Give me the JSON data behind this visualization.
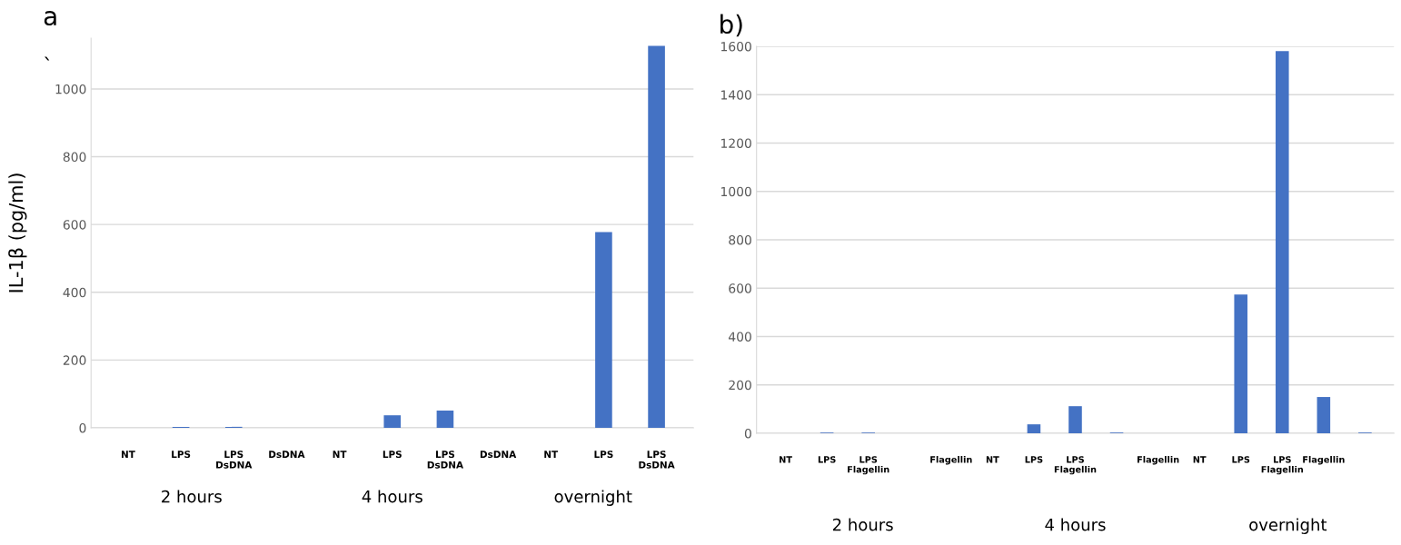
{
  "chart_data": [
    {
      "type": "bar",
      "title": "a",
      "subtitle": "`",
      "ylabel": "IL-1β (pg/ml)",
      "categories": [
        "NT",
        "LPS",
        "LPS DsDNA",
        "DsDNA",
        "NT",
        "LPS",
        "LPS DsDNA",
        "DsDNA",
        "NT",
        "LPS",
        "LPS DsDNA"
      ],
      "values": [
        0,
        3,
        3,
        0,
        0,
        37,
        51,
        0,
        0,
        578,
        1127
      ],
      "color": "#4472c4",
      "ylim": [
        0,
        1150
      ],
      "yticks": [
        0,
        200,
        400,
        600,
        800,
        1000
      ],
      "grid": "y",
      "annotations": [
        "2 hours",
        "4 hours",
        "overnight"
      ]
    },
    {
      "type": "bar",
      "title": "b)",
      "categories": [
        "NT",
        "LPS",
        "LPS Flagellin",
        null,
        "Flagellin",
        "NT",
        "LPS",
        "LPS Flagellin",
        null,
        "Flagellin",
        "NT",
        "LPS",
        "LPS Flagellin",
        "Flagellin",
        null
      ],
      "values": [
        0,
        3,
        3,
        0,
        0,
        0,
        37,
        112,
        3,
        0,
        0,
        574,
        1580,
        150,
        3
      ],
      "color": "#4472c4",
      "ylim": [
        0,
        1600
      ],
      "yticks": [
        0,
        200,
        400,
        600,
        800,
        1000,
        1200,
        1400,
        1600
      ],
      "grid": "y",
      "annotations": [
        "2 hours",
        "4 hours",
        "overnight"
      ]
    }
  ]
}
